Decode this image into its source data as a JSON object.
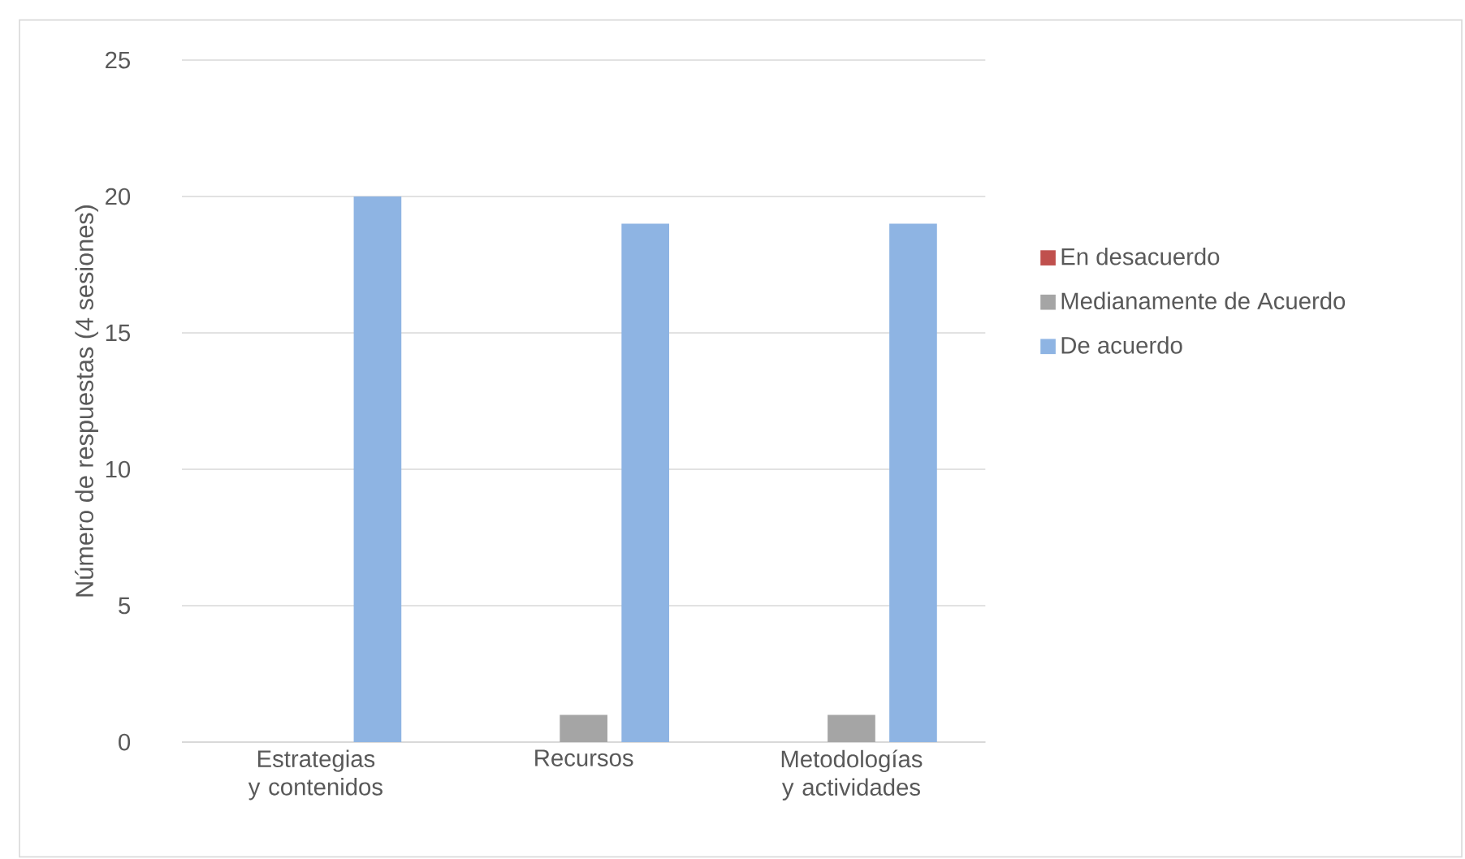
{
  "chart_data": {
    "type": "bar",
    "ylabel": "Número de respuestas (4 sesiones)",
    "categories": [
      "Estrategias y contenidos",
      "Recursos",
      "Metodologías y actividades"
    ],
    "series": [
      {
        "name": "En desacuerdo",
        "color": "#c0504d",
        "values": [
          0,
          0,
          0
        ]
      },
      {
        "name": "Medianamente de Acuerdo",
        "color": "#a5a5a5",
        "values": [
          0,
          1,
          1
        ]
      },
      {
        "name": "De acuerdo",
        "color": "#8eb4e3",
        "values": [
          20,
          19,
          19
        ]
      }
    ],
    "ylim": [
      0,
      25
    ],
    "yticks": [
      0,
      5,
      10,
      15,
      20,
      25
    ],
    "grid": "y",
    "legend": "right"
  }
}
